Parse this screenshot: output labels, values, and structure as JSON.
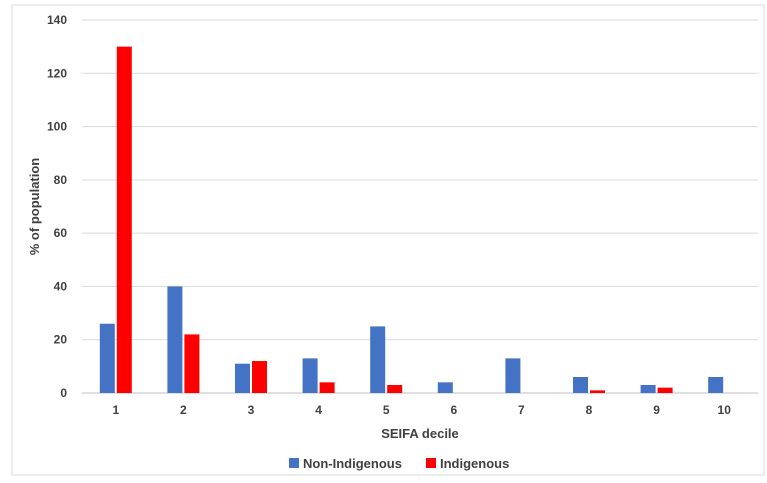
{
  "chart_data": {
    "type": "bar",
    "title": "",
    "xlabel": "SEIFA decile",
    "ylabel": "% of population",
    "categories": [
      "1",
      "2",
      "3",
      "4",
      "5",
      "6",
      "7",
      "8",
      "9",
      "10"
    ],
    "series": [
      {
        "name": "Non-Indigenous",
        "color": "#4472C4",
        "values": [
          26,
          40,
          11,
          13,
          25,
          4,
          13,
          6,
          3,
          6
        ]
      },
      {
        "name": "Indigenous",
        "color": "#FF0000",
        "values": [
          130,
          22,
          12,
          4,
          3,
          0,
          0,
          1,
          2,
          0
        ]
      }
    ],
    "ylim": [
      0,
      140
    ],
    "yticks": [
      0,
      20,
      40,
      60,
      80,
      100,
      120,
      140
    ],
    "grid": true,
    "legend_position": "bottom"
  }
}
